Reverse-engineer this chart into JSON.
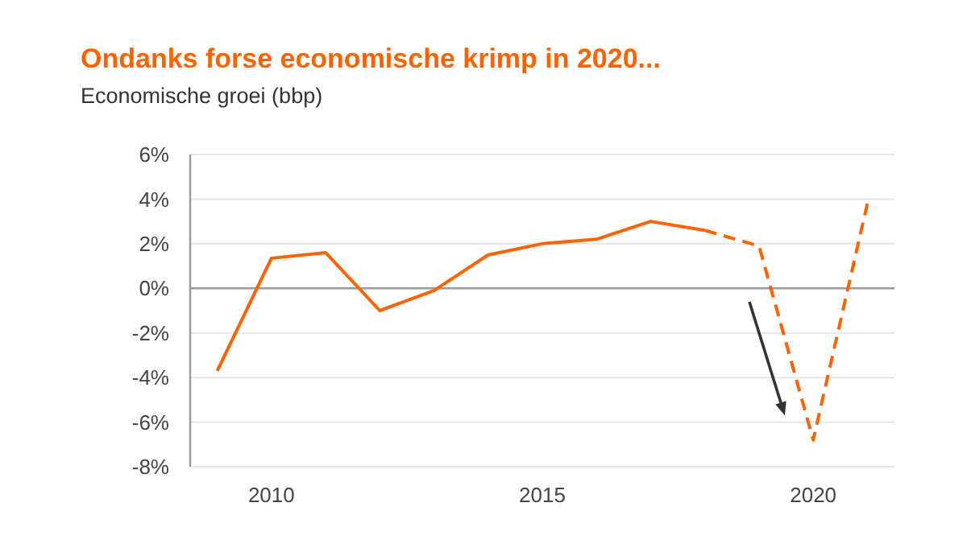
{
  "chart_data": {
    "type": "line",
    "title": "Ondanks forse economische krimp in 2020...",
    "subtitle": "Economische groei (bbp)",
    "categories": [
      null,
      "2010",
      null,
      null,
      null,
      null,
      "2015",
      null,
      null,
      null,
      null,
      "2020",
      null
    ],
    "series": [
      {
        "color": "#ff6200",
        "line_style": "solid",
        "values": [
          -3.7,
          1.35,
          1.6,
          -1.0,
          -0.1,
          1.5,
          2.0,
          2.2,
          3.0,
          2.6,
          null,
          null,
          null
        ]
      },
      {
        "color": "#ff6200",
        "line_style": "dashed",
        "values": [
          null,
          null,
          null,
          null,
          null,
          null,
          null,
          null,
          null,
          2.6,
          1.9,
          -6.8,
          3.8
        ]
      }
    ],
    "ylim": [
      -8,
      6
    ],
    "yticks": [
      {
        "value": -8,
        "label": "-8%"
      },
      {
        "value": -6,
        "label": "-6%"
      },
      {
        "value": -4,
        "label": "-4%"
      },
      {
        "value": -2,
        "label": "-2%"
      },
      {
        "value": 0,
        "label": "0%"
      },
      {
        "value": 2,
        "label": "2%"
      },
      {
        "value": 4,
        "label": "4%"
      },
      {
        "value": 6,
        "label": "6%"
      }
    ],
    "grid": "y"
  }
}
